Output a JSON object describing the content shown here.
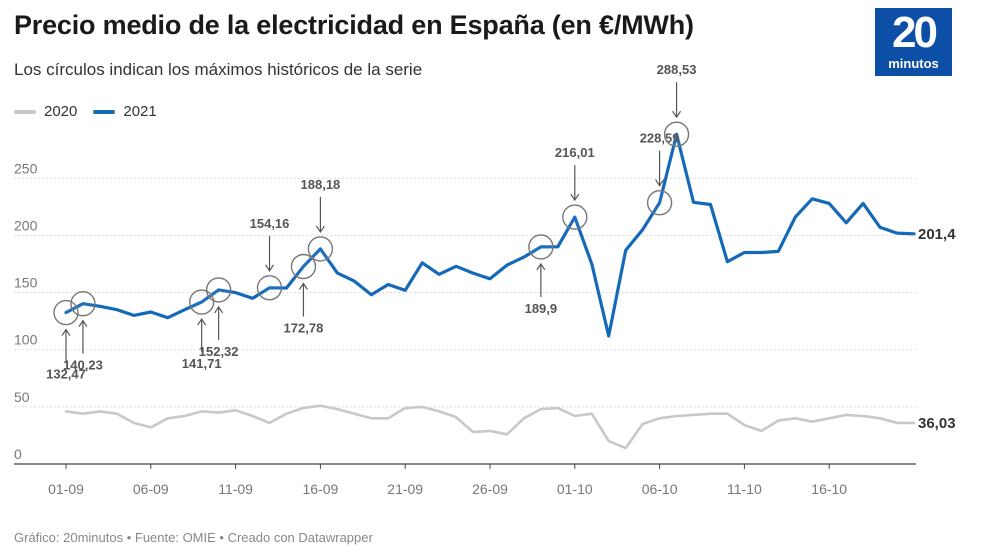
{
  "header": {
    "title": "Precio medio de la electricidad en España (en €/MWh)",
    "subtitle": "Los círculos indican los máximos históricos de la serie"
  },
  "logo": {
    "number": "20",
    "word": "minutos"
  },
  "footer": {
    "text": "Gráfico: 20minutos • Fuente: OMIE • Creado con Datawrapper"
  },
  "colors": {
    "series_2021": "#1469b8",
    "series_2020": "#c8c8c8",
    "logo_bg": "#0d4ea6"
  },
  "chart_data": {
    "type": "line",
    "x_tick_labels": [
      "01-09",
      "06-09",
      "11-09",
      "16-09",
      "21-09",
      "26-09",
      "01-10",
      "06-10",
      "11-10",
      "16-10"
    ],
    "x_start_label": "01-09",
    "y_ticks": [
      0,
      50,
      100,
      150,
      200,
      250
    ],
    "ylim": [
      0,
      280
    ],
    "grid": true,
    "legend_position": "top-left",
    "series": [
      {
        "name": "2020",
        "color": "#c8c8c8",
        "values": [
          46,
          44,
          46,
          44,
          36,
          32,
          40,
          42,
          46,
          45,
          47,
          42,
          36,
          44,
          49,
          51,
          48,
          44,
          40,
          40,
          49,
          50,
          46,
          41,
          28,
          29,
          26,
          40,
          48,
          49,
          42,
          44,
          20,
          14,
          35,
          40,
          42,
          43,
          44,
          44,
          34,
          29,
          38,
          40,
          37,
          40,
          43,
          42,
          40,
          36,
          36
        ],
        "end_label": "36,03"
      },
      {
        "name": "2021",
        "color": "#1469b8",
        "values": [
          132.47,
          140.23,
          138,
          135,
          130,
          133,
          128,
          135,
          141.71,
          152.32,
          150,
          145,
          154.16,
          154,
          172.78,
          188.18,
          167,
          160,
          148,
          157,
          152,
          176,
          166,
          173,
          167,
          162,
          174,
          181,
          189.9,
          190,
          216.01,
          175,
          112,
          187,
          205,
          228.59,
          288.53,
          229,
          227,
          177,
          185,
          185,
          186,
          216,
          232,
          228,
          211,
          228,
          207,
          202,
          201.4
        ],
        "end_label": "201,4"
      }
    ],
    "annotations": [
      {
        "label": "132,47",
        "index": 0,
        "value": 132.47,
        "side": "below"
      },
      {
        "label": "140,23",
        "index": 1,
        "value": 140.23,
        "side": "below"
      },
      {
        "label": "141,71",
        "index": 8,
        "value": 141.71,
        "side": "below"
      },
      {
        "label": "152,32",
        "index": 9,
        "value": 152.32,
        "side": "below"
      },
      {
        "label": "154,16",
        "index": 12,
        "value": 154.16,
        "side": "above"
      },
      {
        "label": "172,78",
        "index": 14,
        "value": 172.78,
        "side": "below"
      },
      {
        "label": "188,18",
        "index": 15,
        "value": 188.18,
        "side": "above"
      },
      {
        "label": "189,9",
        "index": 28,
        "value": 189.9,
        "side": "below"
      },
      {
        "label": "216,01",
        "index": 30,
        "value": 216.01,
        "side": "above"
      },
      {
        "label": "228,59",
        "index": 35,
        "value": 228.59,
        "side": "above"
      },
      {
        "label": "288,53",
        "index": 36,
        "value": 288.53,
        "side": "above"
      }
    ]
  }
}
